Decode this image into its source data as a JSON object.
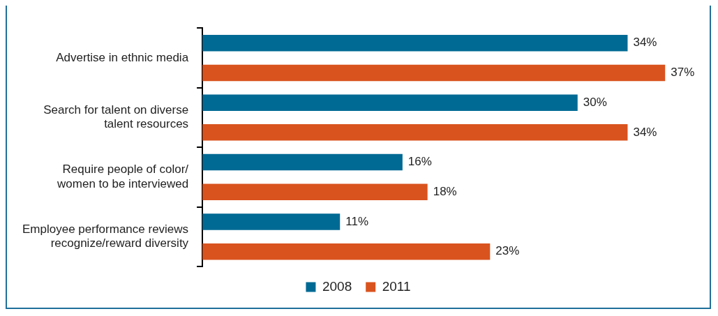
{
  "chart_data": {
    "type": "bar",
    "orientation": "horizontal",
    "categories": [
      "Advertise in ethnic media",
      "Search for talent on diverse talent resources",
      "Require people of color/ women to be interviewed",
      "Employee performance reviews recognize/reward diversity"
    ],
    "series": [
      {
        "name": "2008",
        "color": "#006a94",
        "values": [
          34,
          30,
          16,
          11
        ],
        "value_labels": [
          "34%",
          "30%",
          "16%",
          "11%"
        ]
      },
      {
        "name": "2011",
        "color": "#d9531e",
        "values": [
          37,
          34,
          18,
          23
        ],
        "value_labels": [
          "37%",
          "34%",
          "18%",
          "23%"
        ]
      }
    ],
    "legend": "bottom",
    "tick_labels": "y"
  }
}
